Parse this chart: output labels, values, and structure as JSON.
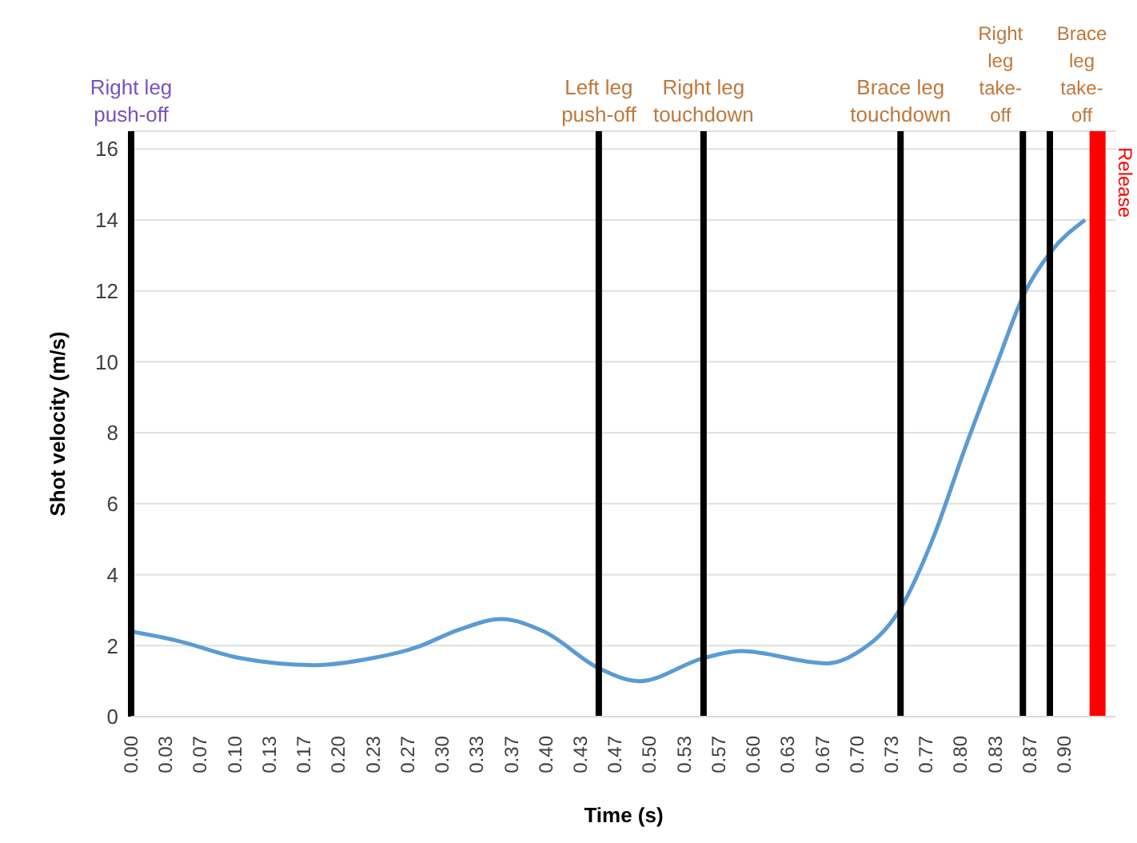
{
  "chart_data": {
    "type": "line",
    "xlabel": "Time (s)",
    "ylabel": "Shot velocity (m/s)",
    "x": [
      0,
      0.043,
      0.105,
      0.177,
      0.233,
      0.275,
      0.316,
      0.357,
      0.398,
      0.452,
      0.49,
      0.552,
      0.588,
      0.671,
      0.7,
      0.742,
      0.773,
      0.804,
      0.835,
      0.861,
      0.887,
      0.92
    ],
    "series": [
      {
        "color": "#5b9bd5",
        "values": [
          2.4,
          2.15,
          1.65,
          1.45,
          1.65,
          1.95,
          2.45,
          2.75,
          2.4,
          1.35,
          1.0,
          1.65,
          1.85,
          1.5,
          1.8,
          3.05,
          5.0,
          7.55,
          9.95,
          11.9,
          13.1,
          14.0
        ]
      }
    ],
    "xlim": [
      0,
      0.95
    ],
    "xticks": [
      {
        "value": 0,
        "label": "0.00"
      },
      {
        "value": 0.0333,
        "label": "0.03"
      },
      {
        "value": 0.0667,
        "label": "0.07"
      },
      {
        "value": 0.1,
        "label": "0.10"
      },
      {
        "value": 0.1333,
        "label": "0.13"
      },
      {
        "value": 0.1667,
        "label": "0.17"
      },
      {
        "value": 0.2,
        "label": "0.20"
      },
      {
        "value": 0.2333,
        "label": "0.23"
      },
      {
        "value": 0.2667,
        "label": "0.27"
      },
      {
        "value": 0.3,
        "label": "0.30"
      },
      {
        "value": 0.3333,
        "label": "0.33"
      },
      {
        "value": 0.3667,
        "label": "0.37"
      },
      {
        "value": 0.4,
        "label": "0.40"
      },
      {
        "value": 0.4333,
        "label": "0.43"
      },
      {
        "value": 0.4667,
        "label": "0.47"
      },
      {
        "value": 0.5,
        "label": "0.50"
      },
      {
        "value": 0.5333,
        "label": "0.53"
      },
      {
        "value": 0.5667,
        "label": "0.57"
      },
      {
        "value": 0.6,
        "label": "0.60"
      },
      {
        "value": 0.6333,
        "label": "0.63"
      },
      {
        "value": 0.6667,
        "label": "0.67"
      },
      {
        "value": 0.7,
        "label": "0.70"
      },
      {
        "value": 0.7333,
        "label": "0.73"
      },
      {
        "value": 0.7667,
        "label": "0.77"
      },
      {
        "value": 0.8,
        "label": "0.80"
      },
      {
        "value": 0.8333,
        "label": "0.83"
      },
      {
        "value": 0.8667,
        "label": "0.87"
      },
      {
        "value": 0.9,
        "label": "0.90"
      }
    ],
    "ylim": [
      0,
      16.5
    ],
    "yticks": [
      0,
      2,
      4,
      6,
      8,
      10,
      12,
      14,
      16
    ],
    "grid": "y",
    "marker": "none",
    "line_style": "solid",
    "ref_lines": [
      {
        "axis": "x",
        "value": 0,
        "label": "Right leg\npush-off",
        "color": "#000000"
      },
      {
        "axis": "x",
        "value": 0.451,
        "label": "Left leg\npush-off",
        "color": "#000000"
      },
      {
        "axis": "x",
        "value": 0.552,
        "label": "Right leg\ntouchdown",
        "color": "#000000"
      },
      {
        "axis": "x",
        "value": 0.742,
        "label": "Brace leg\ntouchdown",
        "color": "#000000"
      },
      {
        "axis": "x",
        "value": 0.86,
        "label": "Right\nleg\ntake-\noff",
        "color": "#000000"
      },
      {
        "axis": "x",
        "value": 0.886,
        "label": "Brace\nleg\ntake-\noff",
        "color": "#000000"
      },
      {
        "axis": "x",
        "value": 0.932,
        "label": "Release",
        "color": "#ff0000"
      }
    ]
  }
}
